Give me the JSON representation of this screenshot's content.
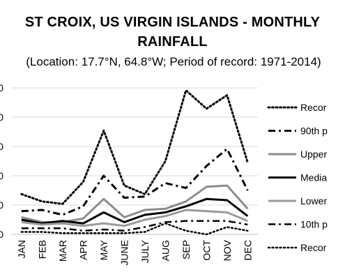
{
  "chart_data": {
    "type": "line",
    "title": "ST CROIX, US VIRGIN ISLANDS - MONTHLY RAINFALL",
    "subtitle": "(Location: 17.7°N, 64.8°W; Period of record: 1971-2014)",
    "categories": [
      "JAN",
      "FEB",
      "MAR",
      "APR",
      "MAY",
      "JUNE",
      "JULY",
      "AUG",
      "SEP",
      "OCT",
      "NOV",
      "DEC"
    ],
    "ytick_labels": [
      "0",
      "0",
      "0",
      "0",
      "0",
      "0"
    ],
    "ylim": [
      0,
      12
    ],
    "legend_position": "right",
    "series": [
      {
        "name": "Recor",
        "color": "#000000",
        "dash": "dotted",
        "width": 3,
        "values": [
          3.3,
          2.7,
          2.5,
          4.3,
          8.5,
          4.0,
          3.3,
          6.0,
          11.8,
          10.3,
          11.4,
          5.9
        ]
      },
      {
        "name": "90th p",
        "color": "#000000",
        "dash": "dashdot",
        "width": 3,
        "values": [
          1.9,
          2.0,
          1.6,
          2.3,
          4.8,
          3.0,
          3.1,
          4.2,
          3.8,
          5.6,
          7.0,
          3.6
        ]
      },
      {
        "name": "Upper",
        "color": "#8c8c8c",
        "dash": "solid",
        "width": 3,
        "values": [
          1.4,
          1.0,
          1.0,
          1.3,
          2.9,
          1.4,
          2.0,
          2.1,
          2.7,
          3.9,
          4.0,
          2.1
        ]
      },
      {
        "name": "Media",
        "color": "#000000",
        "dash": "solid",
        "width": 3,
        "values": [
          1.2,
          0.9,
          1.1,
          0.9,
          1.8,
          1.0,
          1.6,
          1.8,
          2.3,
          2.9,
          2.8,
          1.5
        ]
      },
      {
        "name": "Lower",
        "color": "#9a9a9a",
        "dash": "solid",
        "width": 3,
        "values": [
          1.0,
          0.8,
          0.9,
          0.7,
          0.9,
          0.7,
          1.2,
          1.5,
          2.0,
          1.9,
          1.8,
          1.1
        ]
      },
      {
        "name": "10th p",
        "color": "#000000",
        "dash": "dashdot",
        "width": 2.5,
        "values": [
          0.5,
          0.5,
          0.5,
          0.3,
          0.4,
          0.3,
          0.6,
          1.0,
          1.1,
          1.1,
          1.1,
          0.8
        ]
      },
      {
        "name": "Recor",
        "color": "#000000",
        "dash": "dotted",
        "width": 2.5,
        "values": [
          0.2,
          0.2,
          0.1,
          0.1,
          0.1,
          0.1,
          0.2,
          0.9,
          0.3,
          0.0,
          0.6,
          0.3
        ]
      }
    ]
  }
}
